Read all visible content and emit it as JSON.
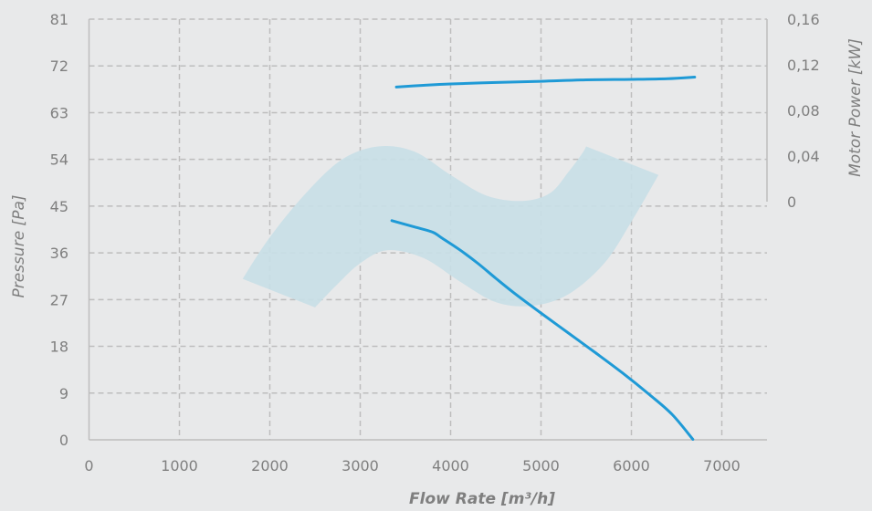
{
  "colors": {
    "background": "#e8e9ea",
    "grid": "#bdbdbd",
    "text": "#7f7f7f",
    "curve": "#1f9ad6",
    "operating_band": "#c8dfe7"
  },
  "chart_data": {
    "type": "line",
    "xlabel": "Flow Rate [m³/h]",
    "ylabel": "Pressure [Pa]",
    "y2label": "Motor Power [kW]",
    "xlim": [
      0,
      7500
    ],
    "ylim": [
      0,
      81
    ],
    "y2lim": [
      0,
      0.16
    ],
    "x_ticks": [
      "0",
      "1000",
      "2000",
      "3000",
      "4000",
      "5000",
      "6000",
      "7000"
    ],
    "x_tick_values": [
      0,
      1000,
      2000,
      3000,
      4000,
      5000,
      6000,
      7000
    ],
    "y_ticks": [
      "0",
      "9",
      "18",
      "27",
      "36",
      "45",
      "54",
      "63",
      "72",
      "81"
    ],
    "y_tick_values": [
      0,
      9,
      18,
      27,
      36,
      45,
      54,
      63,
      72,
      81
    ],
    "y2_ticks": [
      "0",
      "0,04",
      "0,08",
      "0,12",
      "0,16"
    ],
    "y2_tick_values": [
      0,
      0.04,
      0.08,
      0.12,
      0.16
    ],
    "grid": true,
    "series": [
      {
        "axis": "left",
        "x": [
          3350,
          3600,
          3800,
          3900,
          4100,
          4300,
          4500,
          4700,
          5000,
          5300,
          5600,
          5900,
          6200,
          6450,
          6680
        ],
        "y": [
          42.2,
          41.0,
          40.0,
          38.9,
          36.6,
          34.0,
          31.1,
          28.3,
          24.4,
          20.6,
          16.8,
          12.9,
          8.7,
          4.9,
          0.1
        ]
      },
      {
        "axis": "right",
        "x": [
          3400,
          3700,
          4000,
          4500,
          5000,
          5500,
          6000,
          6400,
          6700
        ],
        "y": [
          0.1005,
          0.102,
          0.1032,
          0.1045,
          0.1055,
          0.1068,
          0.1072,
          0.1078,
          0.1092
        ]
      }
    ],
    "band": {
      "upper": {
        "x": [
          1700,
          2000,
          2400,
          2800,
          3200,
          3600,
          4000,
          4400,
          4800,
          5100,
          5300,
          5450,
          5500
        ],
        "y": [
          31.0,
          39.0,
          47.5,
          54.0,
          56.5,
          55.5,
          51.0,
          47.0,
          46.0,
          47.5,
          51.5,
          55.0,
          56.5
        ]
      },
      "lower_reversed": {
        "x": [
          6300,
          6000,
          5700,
          5300,
          4900,
          4500,
          4100,
          3700,
          3300,
          3000,
          2750,
          2500
        ],
        "y": [
          51.0,
          42.0,
          34.0,
          28.0,
          25.8,
          26.5,
          30.5,
          35.0,
          36.5,
          34.0,
          30.0,
          25.5
        ]
      }
    }
  }
}
